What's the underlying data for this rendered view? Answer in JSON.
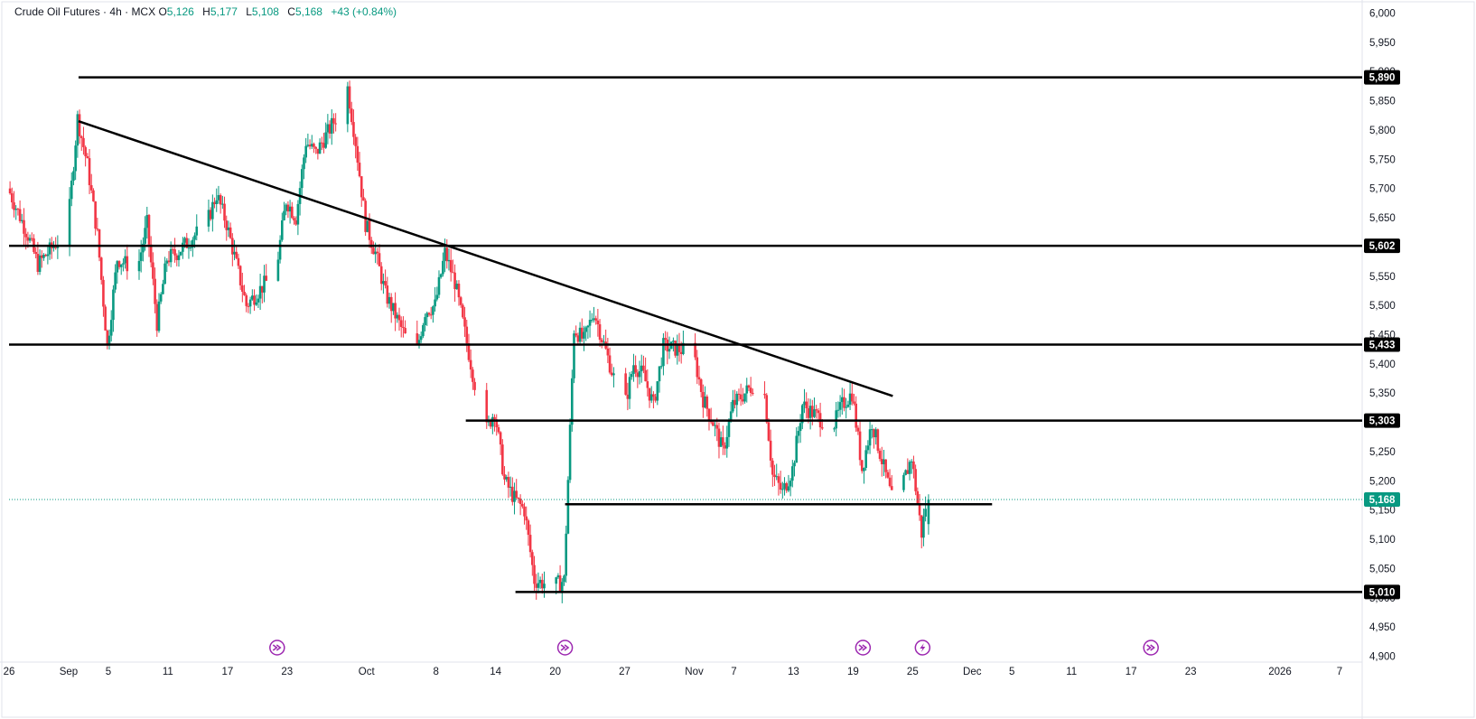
{
  "header": {
    "symbol": "Crude Oil Futures",
    "separator1": "·",
    "interval": "4h",
    "separator2": "·",
    "exchange": "MCX",
    "open_label": "O",
    "open": "5,126",
    "high_label": "H",
    "high": "5,177",
    "low_label": "L",
    "low": "5,108",
    "close_label": "C",
    "close": "5,168",
    "change": "+43 (+0.84%)"
  },
  "colors": {
    "up": "#089981",
    "down": "#f23645",
    "level_line": "#000000",
    "current_price": "#089981",
    "event_icon": "#9c27b0"
  },
  "chart_data": {
    "type": "candlestick",
    "title": "",
    "xlabel": "",
    "ylabel": "",
    "y_ticks": [
      4900,
      4950,
      5000,
      5050,
      5100,
      5150,
      5200,
      5250,
      5300,
      5350,
      5400,
      5450,
      5500,
      5550,
      5600,
      5650,
      5700,
      5750,
      5800,
      5850,
      5900,
      5950,
      6000
    ],
    "y_tick_labels": [
      "4,900",
      "4,950",
      "5,000",
      "5,050",
      "5,100",
      "5,150",
      "5,200",
      "5,250",
      "5,300",
      "5,350",
      "5,400",
      "5,450",
      "5,500",
      "5,550",
      "5,600",
      "5,650",
      "5,700",
      "5,750",
      "5,800",
      "5,850",
      "5,900",
      "5,950",
      "6,000"
    ],
    "ylim": [
      4890,
      6010
    ],
    "x_ticks": [
      {
        "label": "26",
        "date": "2025-08-26"
      },
      {
        "label": "Sep",
        "date": "2025-09-01"
      },
      {
        "label": "5",
        "date": "2025-09-05"
      },
      {
        "label": "11",
        "date": "2025-09-11"
      },
      {
        "label": "17",
        "date": "2025-09-17"
      },
      {
        "label": "23",
        "date": "2025-09-23"
      },
      {
        "label": "Oct",
        "date": "2025-10-01"
      },
      {
        "label": "8",
        "date": "2025-10-08"
      },
      {
        "label": "14",
        "date": "2025-10-14"
      },
      {
        "label": "20",
        "date": "2025-10-20"
      },
      {
        "label": "27",
        "date": "2025-10-27"
      },
      {
        "label": "Nov",
        "date": "2025-11-03"
      },
      {
        "label": "7",
        "date": "2025-11-07"
      },
      {
        "label": "13",
        "date": "2025-11-13"
      },
      {
        "label": "19",
        "date": "2025-11-19"
      },
      {
        "label": "25",
        "date": "2025-11-25"
      },
      {
        "label": "Dec",
        "date": "2025-12-01"
      },
      {
        "label": "5",
        "date": "2025-12-05"
      },
      {
        "label": "11",
        "date": "2025-12-11"
      },
      {
        "label": "17",
        "date": "2025-12-17"
      },
      {
        "label": "23",
        "date": "2025-12-23"
      },
      {
        "label": "2026",
        "date": "2026-01-01"
      },
      {
        "label": "7",
        "date": "2026-01-07"
      }
    ],
    "xlim": [
      "2025-08-26",
      "2026-01-09"
    ],
    "price_path": [
      [
        "2025-08-26",
        5700
      ],
      [
        "2025-08-28",
        5620
      ],
      [
        "2025-08-29",
        5570
      ],
      [
        "2025-09-01",
        5630
      ],
      [
        "2025-09-02",
        5820
      ],
      [
        "2025-09-03",
        5740
      ],
      [
        "2025-09-04",
        5620
      ],
      [
        "2025-09-05",
        5430
      ],
      [
        "2025-09-06",
        5580
      ],
      [
        "2025-09-08",
        5560
      ],
      [
        "2025-09-09",
        5640
      ],
      [
        "2025-09-10",
        5470
      ],
      [
        "2025-09-11",
        5580
      ],
      [
        "2025-09-12",
        5590
      ],
      [
        "2025-09-15",
        5640
      ],
      [
        "2025-09-16",
        5690
      ],
      [
        "2025-09-17",
        5640
      ],
      [
        "2025-09-18",
        5570
      ],
      [
        "2025-09-19",
        5500
      ],
      [
        "2025-09-22",
        5560
      ],
      [
        "2025-09-23",
        5680
      ],
      [
        "2025-09-24",
        5650
      ],
      [
        "2025-09-25",
        5780
      ],
      [
        "2025-09-26",
        5760
      ],
      [
        "2025-09-28",
        5820
      ],
      [
        "2025-09-29",
        5895
      ],
      [
        "2025-09-30",
        5780
      ],
      [
        "2025-10-01",
        5640
      ],
      [
        "2025-10-02",
        5590
      ],
      [
        "2025-10-03",
        5520
      ],
      [
        "2025-10-06",
        5410
      ],
      [
        "2025-10-07",
        5490
      ],
      [
        "2025-10-08",
        5500
      ],
      [
        "2025-10-09",
        5590
      ],
      [
        "2025-10-10",
        5540
      ],
      [
        "2025-10-13",
        5280
      ],
      [
        "2025-10-14",
        5320
      ],
      [
        "2025-10-15",
        5200
      ],
      [
        "2025-10-16",
        5170
      ],
      [
        "2025-10-17",
        5150
      ],
      [
        "2025-10-18",
        5030
      ],
      [
        "2025-10-20",
        5020
      ],
      [
        "2025-10-21",
        5030
      ],
      [
        "2025-10-22",
        5460
      ],
      [
        "2025-10-23",
        5440
      ],
      [
        "2025-10-24",
        5490
      ],
      [
        "2025-10-27",
        5320
      ],
      [
        "2025-10-28",
        5400
      ],
      [
        "2025-10-29",
        5380
      ],
      [
        "2025-10-30",
        5330
      ],
      [
        "2025-10-31",
        5430
      ],
      [
        "2025-11-03",
        5420
      ],
      [
        "2025-11-04",
        5340
      ],
      [
        "2025-11-05",
        5300
      ],
      [
        "2025-11-06",
        5250
      ],
      [
        "2025-11-07",
        5330
      ],
      [
        "2025-11-10",
        5380
      ],
      [
        "2025-11-11",
        5210
      ],
      [
        "2025-11-12",
        5180
      ],
      [
        "2025-11-13",
        5220
      ],
      [
        "2025-11-14",
        5330
      ],
      [
        "2025-11-17",
        5290
      ],
      [
        "2025-11-18",
        5330
      ],
      [
        "2025-11-19",
        5350
      ],
      [
        "2025-11-20",
        5220
      ],
      [
        "2025-11-21",
        5300
      ],
      [
        "2025-11-23",
        5170
      ],
      [
        "2025-11-24",
        5190
      ],
      [
        "2025-11-25",
        5240
      ],
      [
        "2025-11-26",
        5110
      ],
      [
        "2025-11-26T12",
        5168
      ]
    ],
    "last_candle": {
      "open": 5126,
      "high": 5177,
      "low": 5108,
      "close": 5168
    },
    "horizontal_levels": [
      {
        "value": 5890,
        "label": "5,890",
        "from": "2025-09-02"
      },
      {
        "value": 5602,
        "label": "5,602",
        "from": "2025-08-26"
      },
      {
        "value": 5433,
        "label": "5,433",
        "from": "2025-08-26"
      },
      {
        "value": 5303,
        "label": "5,303",
        "from": "2025-10-11"
      },
      {
        "value": 5010,
        "label": "5,010",
        "from": "2025-10-16"
      }
    ],
    "support_segment": {
      "value": 5160,
      "from": "2025-10-21",
      "to": "2025-12-03"
    },
    "trendline": {
      "from": {
        "date": "2025-09-02",
        "value": 5815
      },
      "to": {
        "date": "2025-11-23",
        "value": 5345
      }
    },
    "current_price": {
      "value": 5168,
      "label": "5,168"
    },
    "event_markers": [
      {
        "date": "2025-09-22",
        "icon": "fast-forward-icon"
      },
      {
        "date": "2025-10-21",
        "icon": "fast-forward-icon"
      },
      {
        "date": "2025-11-20",
        "icon": "fast-forward-icon"
      },
      {
        "date": "2025-11-26",
        "icon": "lightning-icon"
      },
      {
        "date": "2025-12-19",
        "icon": "fast-forward-icon"
      }
    ],
    "grid": false,
    "price_axis_position": "right",
    "time_axis_position": "bottom"
  }
}
